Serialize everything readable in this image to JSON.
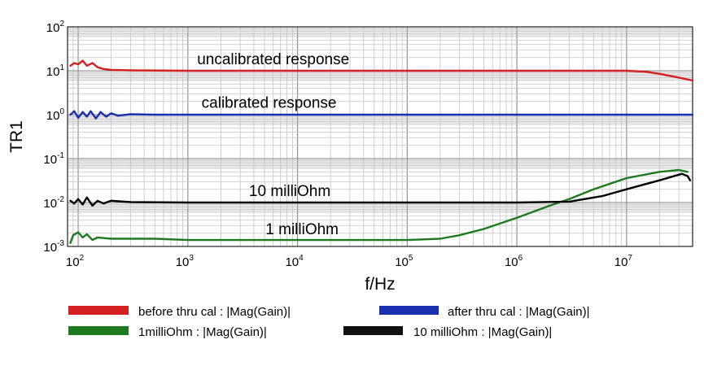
{
  "chart_data": {
    "type": "line",
    "xlabel": "f/Hz",
    "ylabel": "TR1",
    "xscale": "log",
    "yscale": "log",
    "xlim": [
      80,
      40000000
    ],
    "ylim": [
      0.001,
      100
    ],
    "x_ticks": [
      {
        "base": "10",
        "exp": "2",
        "value": 100
      },
      {
        "base": "10",
        "exp": "3",
        "value": 1000
      },
      {
        "base": "10",
        "exp": "4",
        "value": 10000
      },
      {
        "base": "10",
        "exp": "5",
        "value": 100000
      },
      {
        "base": "10",
        "exp": "6",
        "value": 1000000
      },
      {
        "base": "10",
        "exp": "7",
        "value": 10000000
      }
    ],
    "y_ticks": [
      {
        "base": "10",
        "exp": "2",
        "value": 100
      },
      {
        "base": "10",
        "exp": "1",
        "value": 10
      },
      {
        "base": "10",
        "exp": "0",
        "value": 1
      },
      {
        "base": "10",
        "exp": "-1",
        "value": 0.1
      },
      {
        "base": "10",
        "exp": "-2",
        "value": 0.01
      },
      {
        "base": "10",
        "exp": "-3",
        "value": 0.001
      }
    ],
    "grid": true,
    "legend_position": "bottom",
    "series": [
      {
        "name": "before thru cal : |Mag(Gain)|",
        "color": "#d42020",
        "points": [
          [
            85,
            13
          ],
          [
            92,
            15
          ],
          [
            100,
            14
          ],
          [
            110,
            17
          ],
          [
            120,
            13
          ],
          [
            135,
            15
          ],
          [
            150,
            12
          ],
          [
            170,
            11
          ],
          [
            200,
            10.5
          ],
          [
            300,
            10.2
          ],
          [
            1000,
            10
          ],
          [
            100000,
            10
          ],
          [
            1000000,
            10
          ],
          [
            10000000,
            10
          ],
          [
            15000000,
            9.5
          ],
          [
            20000000,
            8.5
          ],
          [
            30000000,
            7
          ],
          [
            40000000,
            6
          ]
        ]
      },
      {
        "name": "after thru cal : |Mag(Gain)|",
        "color": "#1a2fb0",
        "points": [
          [
            85,
            1
          ],
          [
            92,
            1.2
          ],
          [
            100,
            0.85
          ],
          [
            110,
            1.15
          ],
          [
            120,
            0.9
          ],
          [
            130,
            1.2
          ],
          [
            145,
            0.82
          ],
          [
            160,
            1.15
          ],
          [
            180,
            0.9
          ],
          [
            200,
            1.08
          ],
          [
            230,
            0.95
          ],
          [
            300,
            1.02
          ],
          [
            500,
            1
          ],
          [
            1000,
            1
          ],
          [
            100000,
            1
          ],
          [
            10000000,
            1
          ],
          [
            40000000,
            1
          ]
        ]
      },
      {
        "name": "1milliOhm : |Mag(Gain)|",
        "color": "#1f7a1f",
        "points": [
          [
            85,
            0.0012
          ],
          [
            90,
            0.0018
          ],
          [
            100,
            0.0021
          ],
          [
            110,
            0.0016
          ],
          [
            120,
            0.0019
          ],
          [
            135,
            0.0014
          ],
          [
            150,
            0.0016
          ],
          [
            200,
            0.0015
          ],
          [
            500,
            0.0015
          ],
          [
            1000,
            0.0014
          ],
          [
            10000,
            0.0014
          ],
          [
            100000,
            0.0014
          ],
          [
            200000,
            0.0015
          ],
          [
            300000,
            0.0018
          ],
          [
            500000,
            0.0025
          ],
          [
            1000000,
            0.0045
          ],
          [
            2000000,
            0.0085
          ],
          [
            3000000,
            0.012
          ],
          [
            5000000,
            0.02
          ],
          [
            10000000,
            0.036
          ],
          [
            20000000,
            0.05
          ],
          [
            30000000,
            0.055
          ],
          [
            36000000,
            0.05
          ]
        ]
      },
      {
        "name": "10 milliOhm : |Mag(Gain)|",
        "color": "#000000",
        "points": [
          [
            85,
            0.011
          ],
          [
            92,
            0.0095
          ],
          [
            100,
            0.012
          ],
          [
            110,
            0.009
          ],
          [
            120,
            0.013
          ],
          [
            135,
            0.0085
          ],
          [
            150,
            0.011
          ],
          [
            170,
            0.0095
          ],
          [
            200,
            0.011
          ],
          [
            300,
            0.0102
          ],
          [
            1000,
            0.01
          ],
          [
            100000,
            0.01
          ],
          [
            1000000,
            0.01
          ],
          [
            3000000,
            0.0105
          ],
          [
            6000000,
            0.014
          ],
          [
            10000000,
            0.02
          ],
          [
            20000000,
            0.032
          ],
          [
            32000000,
            0.045
          ],
          [
            36000000,
            0.04
          ],
          [
            38000000,
            0.032
          ]
        ]
      }
    ],
    "annotations": [
      {
        "text": "uncalibrated response",
        "x": 6000,
        "y": 14
      },
      {
        "text": "calibrated response",
        "x": 5500,
        "y": 1.45
      },
      {
        "text": "10 milliOhm",
        "x": 8500,
        "y": 0.014
      },
      {
        "text": "1 milliOhm",
        "x": 11000,
        "y": 0.0019
      }
    ]
  }
}
